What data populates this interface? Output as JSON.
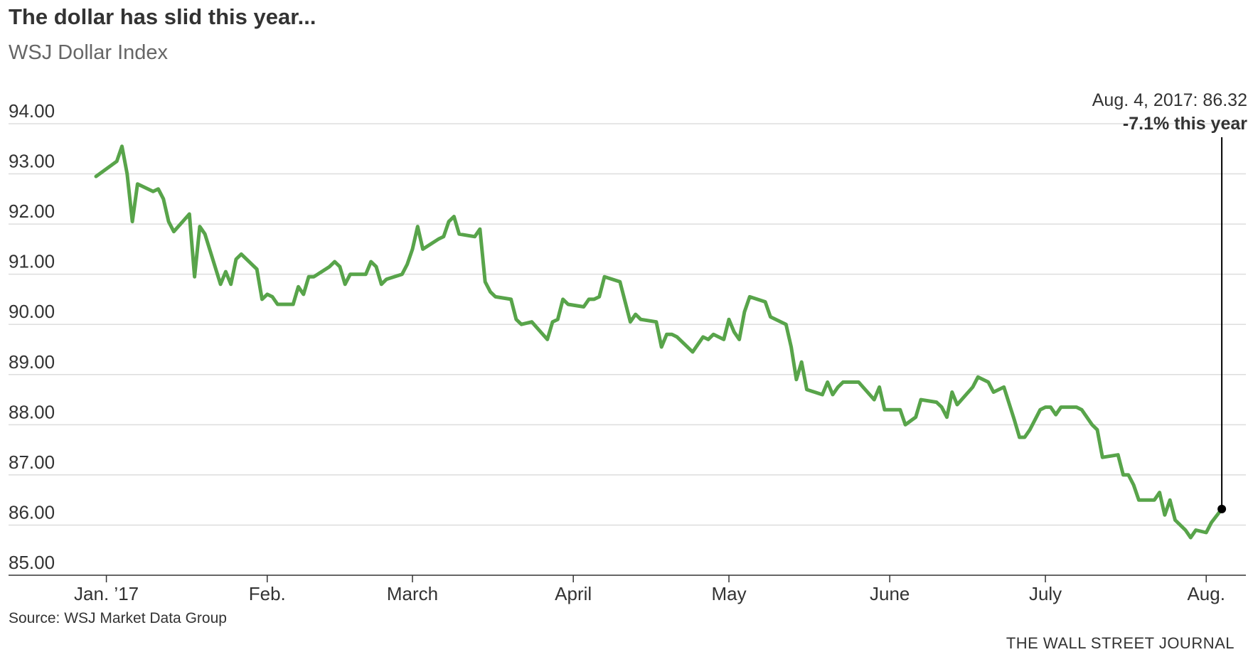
{
  "chart_data": {
    "type": "line",
    "title": "The dollar has slid this year...",
    "subtitle": "WSJ Dollar Index",
    "source": "Source: WSJ Market Data Group",
    "publisher": "THE WALL STREET JOURNAL",
    "colors": {
      "line": "#58a44a",
      "grid": "#dddddd",
      "axis": "#333333",
      "annotation": "#000000"
    },
    "grid": "horizontal",
    "xlim": [
      "2016-12-30",
      "2017-08-07"
    ],
    "ylim": [
      85,
      94
    ],
    "y_ticks": [
      {
        "value": 85,
        "label": "85.00"
      },
      {
        "value": 86,
        "label": "86.00"
      },
      {
        "value": 87,
        "label": "87.00"
      },
      {
        "value": 88,
        "label": "88.00"
      },
      {
        "value": 89,
        "label": "89.00"
      },
      {
        "value": 90,
        "label": "90.00"
      },
      {
        "value": 91,
        "label": "91.00"
      },
      {
        "value": 92,
        "label": "92.00"
      },
      {
        "value": 93,
        "label": "93.00"
      },
      {
        "value": 94,
        "label": "94.00"
      }
    ],
    "x_ticks": [
      {
        "date": "2017-01-01",
        "label": "Jan. ’17"
      },
      {
        "date": "2017-02-01",
        "label": "Feb."
      },
      {
        "date": "2017-03-01",
        "label": "March"
      },
      {
        "date": "2017-04-01",
        "label": "April"
      },
      {
        "date": "2017-05-01",
        "label": "May"
      },
      {
        "date": "2017-06-01",
        "label": "June"
      },
      {
        "date": "2017-07-01",
        "label": "July"
      },
      {
        "date": "2017-08-01",
        "label": "Aug."
      }
    ],
    "series": [
      {
        "points": [
          [
            "2016-12-30",
            92.95
          ],
          [
            "2017-01-03",
            93.25
          ],
          [
            "2017-01-04",
            93.55
          ],
          [
            "2017-01-05",
            93.0
          ],
          [
            "2017-01-06",
            92.05
          ],
          [
            "2017-01-07",
            92.8
          ],
          [
            "2017-01-10",
            92.65
          ],
          [
            "2017-01-11",
            92.7
          ],
          [
            "2017-01-12",
            92.5
          ],
          [
            "2017-01-13",
            92.05
          ],
          [
            "2017-01-14",
            91.85
          ],
          [
            "2017-01-17",
            92.2
          ],
          [
            "2017-01-18",
            90.95
          ],
          [
            "2017-01-19",
            91.95
          ],
          [
            "2017-01-20",
            91.8
          ],
          [
            "2017-01-23",
            90.8
          ],
          [
            "2017-01-24",
            91.05
          ],
          [
            "2017-01-25",
            90.8
          ],
          [
            "2017-01-26",
            91.3
          ],
          [
            "2017-01-27",
            91.4
          ],
          [
            "2017-01-30",
            91.1
          ],
          [
            "2017-01-31",
            90.5
          ],
          [
            "2017-02-01",
            90.6
          ],
          [
            "2017-02-02",
            90.55
          ],
          [
            "2017-02-03",
            90.4
          ],
          [
            "2017-02-06",
            90.4
          ],
          [
            "2017-02-07",
            90.75
          ],
          [
            "2017-02-08",
            90.6
          ],
          [
            "2017-02-09",
            90.95
          ],
          [
            "2017-02-10",
            90.95
          ],
          [
            "2017-02-13",
            91.15
          ],
          [
            "2017-02-14",
            91.25
          ],
          [
            "2017-02-15",
            91.15
          ],
          [
            "2017-02-16",
            90.8
          ],
          [
            "2017-02-17",
            91.0
          ],
          [
            "2017-02-20",
            91.0
          ],
          [
            "2017-02-21",
            91.25
          ],
          [
            "2017-02-22",
            91.15
          ],
          [
            "2017-02-23",
            90.8
          ],
          [
            "2017-02-24",
            90.9
          ],
          [
            "2017-02-27",
            91.0
          ],
          [
            "2017-02-28",
            91.2
          ],
          [
            "2017-03-01",
            91.5
          ],
          [
            "2017-03-02",
            91.95
          ],
          [
            "2017-03-03",
            91.5
          ],
          [
            "2017-03-06",
            91.7
          ],
          [
            "2017-03-07",
            91.75
          ],
          [
            "2017-03-08",
            92.05
          ],
          [
            "2017-03-09",
            92.15
          ],
          [
            "2017-03-10",
            91.8
          ],
          [
            "2017-03-13",
            91.75
          ],
          [
            "2017-03-14",
            91.9
          ],
          [
            "2017-03-15",
            90.85
          ],
          [
            "2017-03-16",
            90.65
          ],
          [
            "2017-03-17",
            90.55
          ],
          [
            "2017-03-20",
            90.5
          ],
          [
            "2017-03-21",
            90.1
          ],
          [
            "2017-03-22",
            90.0
          ],
          [
            "2017-03-24",
            90.05
          ],
          [
            "2017-03-27",
            89.7
          ],
          [
            "2017-03-28",
            90.05
          ],
          [
            "2017-03-29",
            90.1
          ],
          [
            "2017-03-30",
            90.5
          ],
          [
            "2017-03-31",
            90.4
          ],
          [
            "2017-04-03",
            90.35
          ],
          [
            "2017-04-04",
            90.5
          ],
          [
            "2017-04-05",
            90.5
          ],
          [
            "2017-04-06",
            90.55
          ],
          [
            "2017-04-07",
            90.95
          ],
          [
            "2017-04-10",
            90.85
          ],
          [
            "2017-04-11",
            90.45
          ],
          [
            "2017-04-12",
            90.05
          ],
          [
            "2017-04-13",
            90.2
          ],
          [
            "2017-04-14",
            90.1
          ],
          [
            "2017-04-17",
            90.05
          ],
          [
            "2017-04-18",
            89.55
          ],
          [
            "2017-04-19",
            89.8
          ],
          [
            "2017-04-20",
            89.8
          ],
          [
            "2017-04-21",
            89.75
          ],
          [
            "2017-04-24",
            89.45
          ],
          [
            "2017-04-25",
            89.6
          ],
          [
            "2017-04-26",
            89.75
          ],
          [
            "2017-04-27",
            89.7
          ],
          [
            "2017-04-28",
            89.8
          ],
          [
            "2017-04-30",
            89.7
          ],
          [
            "2017-05-01",
            90.1
          ],
          [
            "2017-05-02",
            89.85
          ],
          [
            "2017-05-03",
            89.7
          ],
          [
            "2017-05-04",
            90.25
          ],
          [
            "2017-05-05",
            90.55
          ],
          [
            "2017-05-08",
            90.45
          ],
          [
            "2017-05-09",
            90.15
          ],
          [
            "2017-05-12",
            90.0
          ],
          [
            "2017-05-13",
            89.55
          ],
          [
            "2017-05-14",
            88.9
          ],
          [
            "2017-05-15",
            89.25
          ],
          [
            "2017-05-16",
            88.7
          ],
          [
            "2017-05-19",
            88.6
          ],
          [
            "2017-05-20",
            88.85
          ],
          [
            "2017-05-21",
            88.6
          ],
          [
            "2017-05-22",
            88.75
          ],
          [
            "2017-05-23",
            88.85
          ],
          [
            "2017-05-26",
            88.85
          ],
          [
            "2017-05-29",
            88.5
          ],
          [
            "2017-05-30",
            88.75
          ],
          [
            "2017-05-31",
            88.3
          ],
          [
            "2017-06-01",
            88.3
          ],
          [
            "2017-06-03",
            88.3
          ],
          [
            "2017-06-04",
            88.0
          ],
          [
            "2017-06-06",
            88.15
          ],
          [
            "2017-06-07",
            88.5
          ],
          [
            "2017-06-10",
            88.45
          ],
          [
            "2017-06-11",
            88.35
          ],
          [
            "2017-06-12",
            88.15
          ],
          [
            "2017-06-13",
            88.65
          ],
          [
            "2017-06-14",
            88.4
          ],
          [
            "2017-06-17",
            88.75
          ],
          [
            "2017-06-18",
            88.95
          ],
          [
            "2017-06-20",
            88.85
          ],
          [
            "2017-06-21",
            88.65
          ],
          [
            "2017-06-23",
            88.75
          ],
          [
            "2017-06-25",
            88.1
          ],
          [
            "2017-06-26",
            87.75
          ],
          [
            "2017-06-27",
            87.75
          ],
          [
            "2017-06-28",
            87.9
          ],
          [
            "2017-06-30",
            88.3
          ],
          [
            "2017-07-01",
            88.35
          ],
          [
            "2017-07-02",
            88.35
          ],
          [
            "2017-07-03",
            88.2
          ],
          [
            "2017-07-04",
            88.35
          ],
          [
            "2017-07-07",
            88.35
          ],
          [
            "2017-07-08",
            88.3
          ],
          [
            "2017-07-10",
            88.0
          ],
          [
            "2017-07-11",
            87.9
          ],
          [
            "2017-07-12",
            87.35
          ],
          [
            "2017-07-15",
            87.4
          ],
          [
            "2017-07-16",
            87.0
          ],
          [
            "2017-07-17",
            87.0
          ],
          [
            "2017-07-18",
            86.8
          ],
          [
            "2017-07-19",
            86.5
          ],
          [
            "2017-07-22",
            86.5
          ],
          [
            "2017-07-23",
            86.65
          ],
          [
            "2017-07-24",
            86.2
          ],
          [
            "2017-07-25",
            86.5
          ],
          [
            "2017-07-26",
            86.1
          ],
          [
            "2017-07-28",
            85.9
          ],
          [
            "2017-07-29",
            85.75
          ],
          [
            "2017-07-30",
            85.9
          ],
          [
            "2017-08-01",
            85.85
          ],
          [
            "2017-08-02",
            86.05
          ],
          [
            "2017-08-04",
            86.32
          ]
        ]
      }
    ],
    "annotation": {
      "date": "2017-08-04",
      "value": 86.32,
      "line1": "Aug. 4, 2017: 86.32",
      "line2": "-7.1% this year"
    }
  }
}
